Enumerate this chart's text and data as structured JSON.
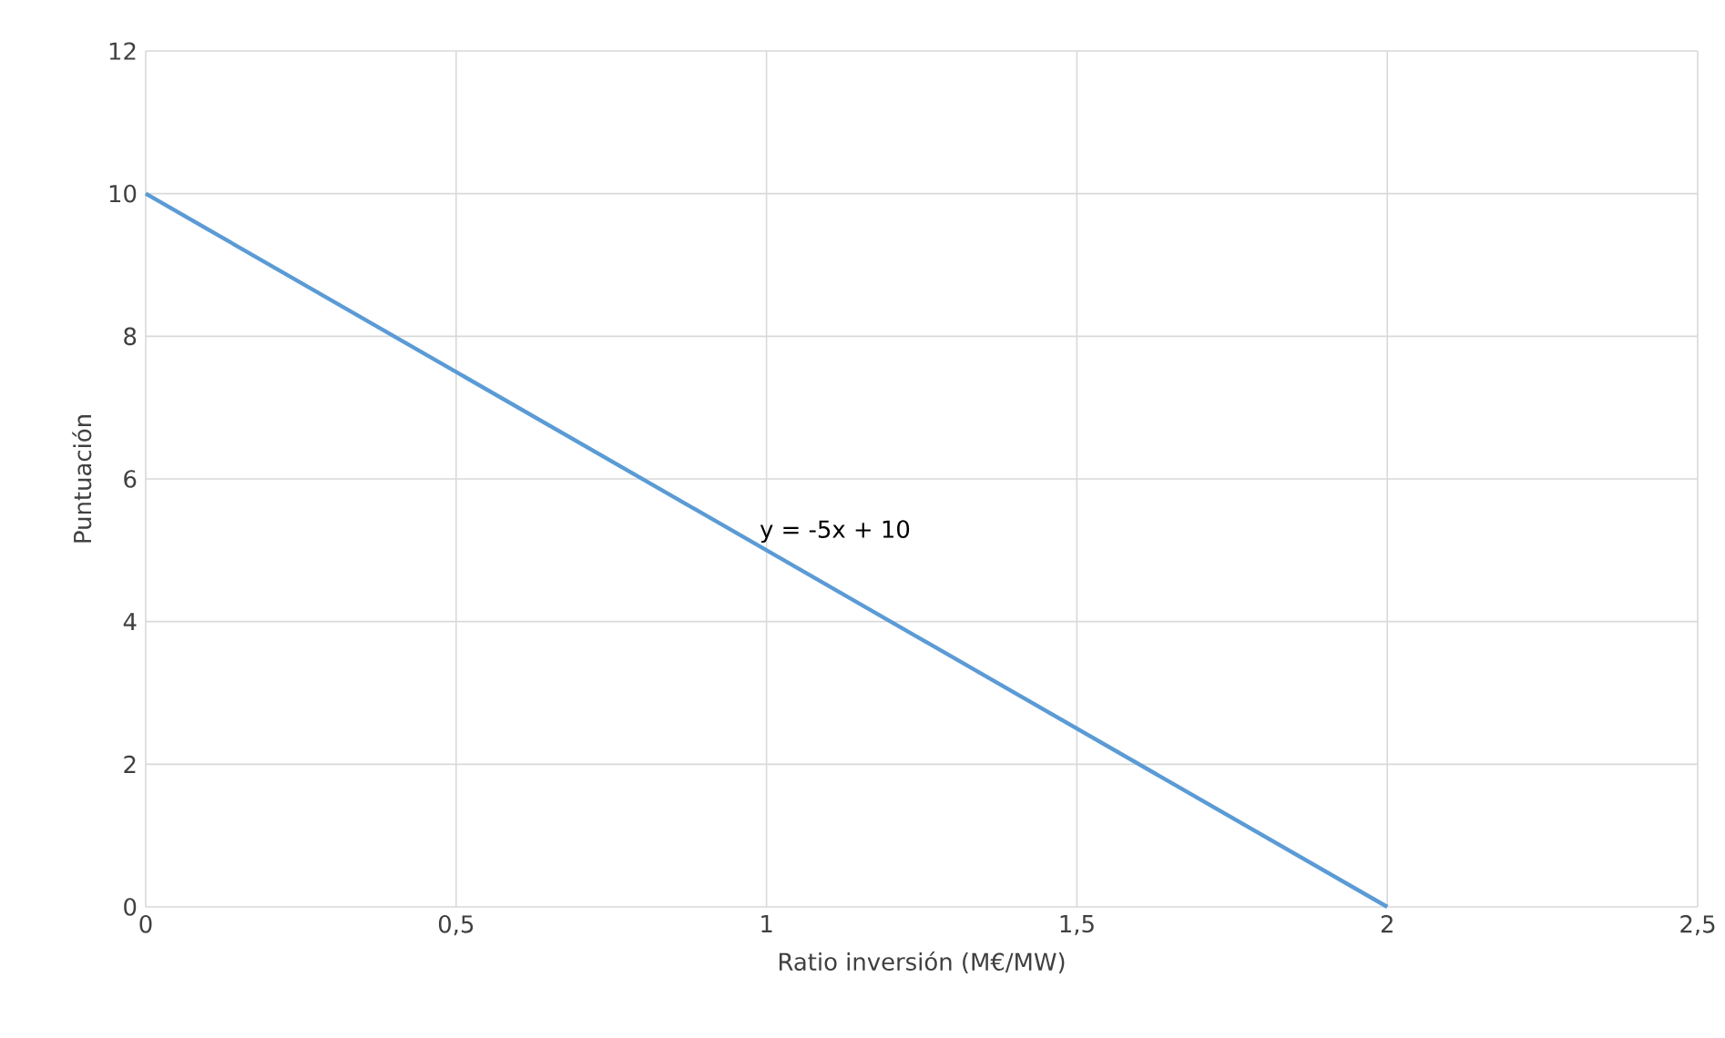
{
  "chart_data": {
    "type": "line",
    "xlabel": "Ratio inversión (M€/MW)",
    "ylabel": "Puntuación",
    "x": [
      0,
      2
    ],
    "series": [
      {
        "color": "#5b9bd5",
        "values": [
          10,
          0
        ]
      }
    ],
    "xlim": [
      0,
      2.5
    ],
    "ylim": [
      0,
      12
    ],
    "xticks": [
      0,
      {
        "value": 0.5,
        "label": "0,5"
      },
      1,
      {
        "value": 1.5,
        "label": "1,5"
      },
      2,
      {
        "value": 2.5,
        "label": "2,5"
      }
    ],
    "yticks": [
      0,
      2,
      4,
      6,
      8,
      10,
      12
    ],
    "grid": true,
    "marker": "none",
    "line_style": "solid",
    "annotations": [
      {
        "text": "y = -5x + 10",
        "x": 1,
        "y": 5
      }
    ]
  }
}
